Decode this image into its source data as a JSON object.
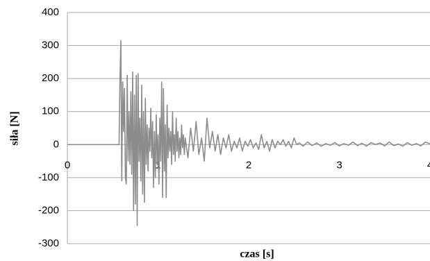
{
  "chart_data": {
    "type": "line",
    "xlabel": "czas [s]",
    "ylabel": "siła [N]",
    "x": [
      0,
      0.57,
      0.58,
      0.59,
      0.6,
      0.61,
      0.62,
      0.63,
      0.64,
      0.65,
      0.66,
      0.67,
      0.68,
      0.69,
      0.7,
      0.71,
      0.72,
      0.73,
      0.74,
      0.75,
      0.76,
      0.77,
      0.78,
      0.79,
      0.8,
      0.81,
      0.82,
      0.83,
      0.84,
      0.85,
      0.86,
      0.87,
      0.88,
      0.89,
      0.9,
      0.91,
      0.92,
      0.93,
      0.94,
      0.95,
      0.96,
      0.97,
      0.98,
      0.99,
      1.0,
      1.01,
      1.02,
      1.03,
      1.04,
      1.05,
      1.06,
      1.07,
      1.08,
      1.09,
      1.1,
      1.11,
      1.12,
      1.13,
      1.14,
      1.15,
      1.16,
      1.17,
      1.18,
      1.19,
      1.2,
      1.21,
      1.22,
      1.23,
      1.24,
      1.25,
      1.26,
      1.27,
      1.28,
      1.29,
      1.3,
      1.33,
      1.36,
      1.39,
      1.42,
      1.45,
      1.48,
      1.51,
      1.54,
      1.57,
      1.6,
      1.63,
      1.66,
      1.69,
      1.72,
      1.75,
      1.78,
      1.81,
      1.84,
      1.87,
      1.9,
      1.93,
      1.96,
      1.99,
      2.02,
      2.05,
      2.08,
      2.11,
      2.14,
      2.17,
      2.2,
      2.23,
      2.26,
      2.29,
      2.32,
      2.35,
      2.38,
      2.41,
      2.44,
      2.47,
      2.5,
      2.53,
      2.56,
      2.6,
      2.65,
      2.7,
      2.75,
      2.8,
      2.85,
      2.9,
      2.95,
      3.0,
      3.05,
      3.1,
      3.15,
      3.2,
      3.25,
      3.3,
      3.35,
      3.4,
      3.45,
      3.5,
      3.55,
      3.6,
      3.65,
      3.7,
      3.75,
      3.8,
      3.85,
      3.9,
      3.95,
      4.0
    ],
    "series": [
      {
        "color": "#8c8c8c",
        "values": [
          0,
          0,
          200,
          315,
          -110,
          190,
          40,
          170,
          -100,
          -120,
          210,
          -50,
          100,
          -60,
          160,
          -90,
          220,
          -200,
          150,
          -180,
          210,
          -245,
          215,
          -50,
          80,
          -110,
          180,
          -150,
          100,
          -175,
          140,
          -60,
          60,
          -80,
          50,
          -20,
          110,
          -40,
          70,
          -130,
          40,
          -100,
          90,
          -60,
          30,
          -120,
          80,
          -50,
          190,
          -160,
          170,
          -80,
          60,
          -160,
          120,
          -40,
          50,
          -20,
          40,
          -60,
          100,
          -30,
          30,
          -50,
          80,
          -20,
          40,
          -40,
          20,
          -30,
          60,
          -10,
          30,
          -30,
          20,
          -40,
          50,
          -20,
          70,
          -30,
          20,
          -50,
          80,
          -10,
          40,
          -20,
          30,
          -30,
          20,
          -10,
          30,
          -20,
          10,
          -10,
          20,
          -20,
          10,
          -5,
          15,
          -10,
          5,
          -15,
          30,
          -10,
          10,
          -20,
          15,
          -10,
          10,
          0,
          15,
          -5,
          10,
          -10,
          20,
          0,
          5,
          -5,
          8,
          -3,
          5,
          -5,
          3,
          -2,
          6,
          -4,
          3,
          -2,
          8,
          -3,
          4,
          -5,
          6,
          0,
          5,
          -4,
          8,
          -3,
          2,
          -5,
          6,
          -2,
          3,
          -4,
          8,
          2
        ]
      }
    ],
    "xlim": [
      0,
      4
    ],
    "xticks": [
      0,
      1,
      2,
      3,
      4
    ],
    "ylim": [
      -300,
      400
    ],
    "yticks": [
      -300,
      -200,
      -100,
      0,
      100,
      200,
      300,
      400
    ],
    "grid": true
  }
}
